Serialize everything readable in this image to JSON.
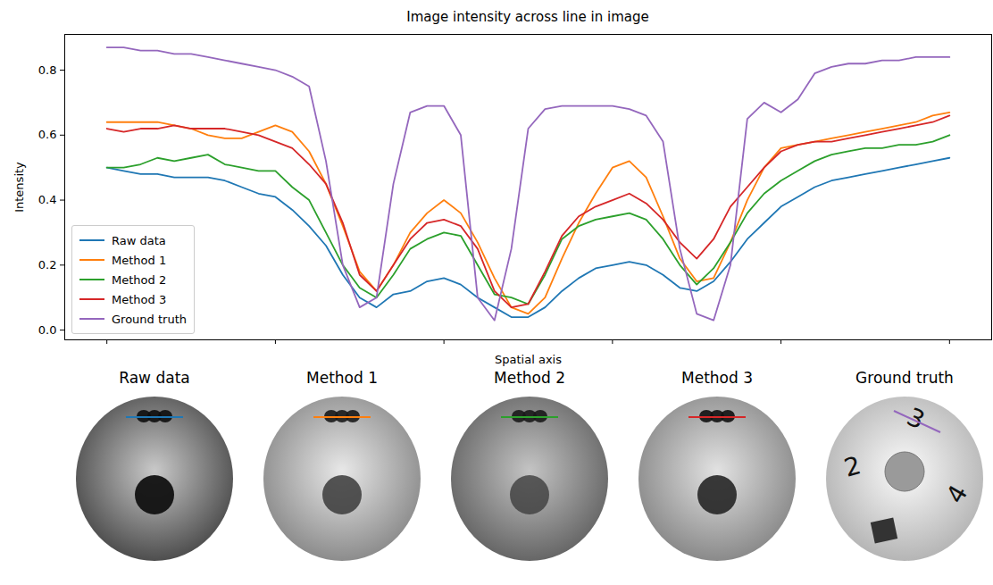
{
  "chart_data": {
    "type": "line",
    "title": "Image intensity across line in image",
    "x_label": "Spatial axis",
    "y_label": "Intensity",
    "xlim": [
      -5,
      105
    ],
    "xticks": [
      0,
      20,
      40,
      60,
      80,
      100
    ],
    "ylim": [
      -0.03,
      0.91
    ],
    "yticks": [
      {
        "value": 0,
        "label": "0.0"
      },
      0.2,
      0.4,
      0.6,
      0.8
    ],
    "tick_labels": "y",
    "grid": false,
    "legend": "lower left",
    "x": [
      0,
      2,
      4,
      6,
      8,
      10,
      12,
      14,
      16,
      18,
      20,
      22,
      24,
      26,
      28,
      30,
      32,
      34,
      36,
      38,
      40,
      42,
      44,
      46,
      48,
      50,
      52,
      54,
      56,
      58,
      60,
      62,
      64,
      66,
      68,
      70,
      72,
      74,
      76,
      78,
      80,
      82,
      84,
      86,
      88,
      90,
      92,
      94,
      96,
      98,
      100
    ],
    "series": [
      {
        "name": "Raw data",
        "color": "#1f77b4",
        "values": [
          0.5,
          0.49,
          0.48,
          0.48,
          0.47,
          0.47,
          0.47,
          0.46,
          0.44,
          0.42,
          0.41,
          0.37,
          0.32,
          0.26,
          0.17,
          0.1,
          0.07,
          0.11,
          0.12,
          0.15,
          0.16,
          0.14,
          0.1,
          0.07,
          0.04,
          0.04,
          0.07,
          0.12,
          0.16,
          0.19,
          0.2,
          0.21,
          0.2,
          0.17,
          0.13,
          0.12,
          0.15,
          0.21,
          0.28,
          0.33,
          0.38,
          0.41,
          0.44,
          0.46,
          0.47,
          0.48,
          0.49,
          0.5,
          0.51,
          0.52,
          0.53
        ]
      },
      {
        "name": "Method 1",
        "color": "#ff7f0e",
        "values": [
          0.64,
          0.64,
          0.64,
          0.64,
          0.63,
          0.62,
          0.6,
          0.59,
          0.59,
          0.61,
          0.63,
          0.61,
          0.55,
          0.45,
          0.32,
          0.18,
          0.12,
          0.2,
          0.3,
          0.36,
          0.4,
          0.36,
          0.27,
          0.16,
          0.07,
          0.05,
          0.1,
          0.22,
          0.33,
          0.42,
          0.5,
          0.52,
          0.47,
          0.35,
          0.22,
          0.15,
          0.16,
          0.27,
          0.4,
          0.5,
          0.56,
          0.57,
          0.58,
          0.59,
          0.6,
          0.61,
          0.62,
          0.63,
          0.64,
          0.66,
          0.67
        ]
      },
      {
        "name": "Method 2",
        "color": "#2ca02c",
        "values": [
          0.5,
          0.5,
          0.51,
          0.53,
          0.52,
          0.53,
          0.54,
          0.51,
          0.5,
          0.49,
          0.49,
          0.44,
          0.4,
          0.3,
          0.2,
          0.13,
          0.1,
          0.17,
          0.25,
          0.28,
          0.3,
          0.29,
          0.2,
          0.11,
          0.1,
          0.08,
          0.17,
          0.28,
          0.32,
          0.34,
          0.35,
          0.36,
          0.34,
          0.28,
          0.2,
          0.14,
          0.19,
          0.27,
          0.36,
          0.42,
          0.46,
          0.49,
          0.52,
          0.54,
          0.55,
          0.56,
          0.56,
          0.57,
          0.57,
          0.58,
          0.6
        ]
      },
      {
        "name": "Method 3",
        "color": "#d62728",
        "values": [
          0.62,
          0.61,
          0.62,
          0.62,
          0.63,
          0.62,
          0.62,
          0.62,
          0.61,
          0.6,
          0.58,
          0.56,
          0.51,
          0.45,
          0.33,
          0.17,
          0.12,
          0.2,
          0.28,
          0.33,
          0.34,
          0.32,
          0.25,
          0.12,
          0.07,
          0.08,
          0.18,
          0.29,
          0.35,
          0.38,
          0.4,
          0.42,
          0.39,
          0.34,
          0.27,
          0.22,
          0.28,
          0.38,
          0.44,
          0.5,
          0.55,
          0.57,
          0.58,
          0.58,
          0.59,
          0.6,
          0.61,
          0.62,
          0.63,
          0.64,
          0.66
        ]
      },
      {
        "name": "Ground truth",
        "color": "#9467bd",
        "values": [
          0.87,
          0.87,
          0.86,
          0.86,
          0.85,
          0.85,
          0.84,
          0.83,
          0.82,
          0.81,
          0.8,
          0.78,
          0.75,
          0.52,
          0.2,
          0.07,
          0.1,
          0.45,
          0.67,
          0.69,
          0.69,
          0.6,
          0.1,
          0.03,
          0.25,
          0.62,
          0.68,
          0.69,
          0.69,
          0.69,
          0.69,
          0.68,
          0.66,
          0.58,
          0.25,
          0.05,
          0.03,
          0.2,
          0.65,
          0.7,
          0.67,
          0.71,
          0.79,
          0.81,
          0.82,
          0.82,
          0.83,
          0.83,
          0.84,
          0.84,
          0.84
        ]
      }
    ]
  },
  "images": [
    {
      "title": "Raw data"
    },
    {
      "title": "Method 1"
    },
    {
      "title": "Method 2"
    },
    {
      "title": "Method 3"
    },
    {
      "title": "Ground truth",
      "labels": [
        "2",
        "3",
        "4"
      ]
    }
  ]
}
